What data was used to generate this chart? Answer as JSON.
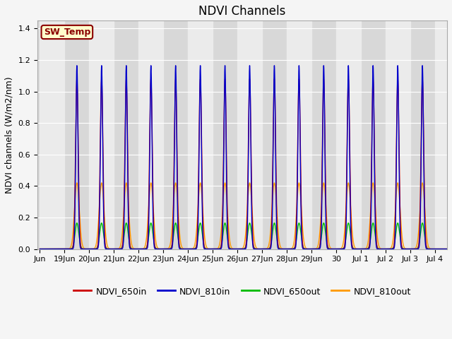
{
  "title": "NDVI Channels",
  "ylabel": "NDVI channels (W/m2/nm)",
  "xlabel": "",
  "ylim": [
    0.0,
    1.45
  ],
  "yticks": [
    0.0,
    0.2,
    0.4,
    0.6,
    0.8,
    1.0,
    1.2,
    1.4
  ],
  "background_color": "#f5f5f5",
  "plot_bg_color": "#d8d8d8",
  "white_band_color": "#ebebeb",
  "sw_temp_label": "SW_Temp",
  "sw_temp_bg": "#ffffcc",
  "sw_temp_border": "#8b0000",
  "sw_temp_text_color": "#8b0000",
  "lines": {
    "NDVI_650in": {
      "color": "#cc0000",
      "peak": 1.08,
      "sigma": 0.055,
      "zorder": 4
    },
    "NDVI_810in": {
      "color": "#0000cc",
      "peak": 1.165,
      "sigma": 0.045,
      "zorder": 5
    },
    "NDVI_650out": {
      "color": "#00bb00",
      "peak": 0.165,
      "sigma": 0.075,
      "zorder": 2
    },
    "NDVI_810out": {
      "color": "#ff9900",
      "peak": 0.42,
      "sigma": 0.095,
      "zorder": 3
    }
  },
  "num_peaks": 15,
  "xtick_labels": [
    "Jun",
    "19Jun",
    "20Jun",
    "21Jun",
    "22Jun",
    "23Jun",
    "24Jun",
    "25Jun",
    "26Jun",
    "27Jun",
    "28Jun",
    "29Jun",
    "30",
    "Jul 1",
    "Jul 2",
    "Jul 3",
    "Jul 4"
  ],
  "xtick_positions": [
    0,
    1,
    2,
    3,
    4,
    5,
    6,
    7,
    8,
    9,
    10,
    11,
    12,
    13,
    14,
    15,
    16
  ],
  "title_fontsize": 12,
  "axis_label_fontsize": 9,
  "tick_fontsize": 8,
  "legend_fontsize": 9,
  "linewidth": 1.0
}
